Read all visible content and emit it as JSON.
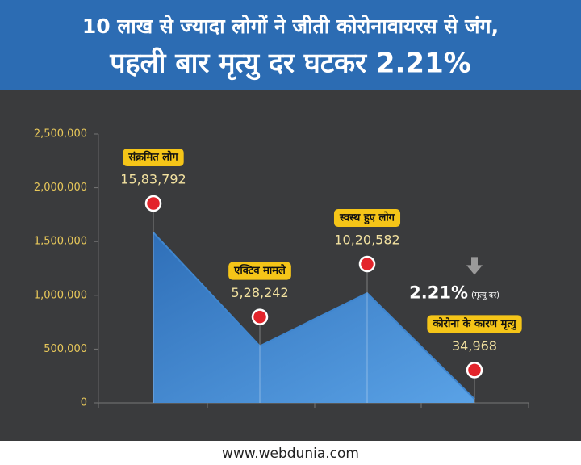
{
  "chart_data": {
    "type": "area",
    "title": "10 लाख से ज्यादा लोगों ने जीती कोरोनावायरस से जंग,",
    "subtitle": "पहली बार मृत्यु दर घटकर 2.21%",
    "categories": [
      "संक्रमित लोग",
      "एक्टिव मामले",
      "स्वस्थ हुए लोग",
      "कोरोना के कारण मृत्यु"
    ],
    "values": [
      1583792,
      528242,
      1020582,
      34968
    ],
    "value_labels": [
      "15,83,792",
      "5,28,242",
      "10,20,582",
      "34,968"
    ],
    "color": "#3f86cf",
    "ylim": [
      0,
      2500000
    ],
    "yticks": [
      0,
      {
        "value": 500000,
        "label": "500,000"
      },
      {
        "value": 1000000,
        "label": "1,000,000"
      },
      {
        "value": 1500000,
        "label": "1,500,000"
      },
      {
        "value": 2000000,
        "label": "2,000,000"
      },
      {
        "value": 2500000,
        "label": "2,500,000"
      }
    ],
    "annotation": "2.21%",
    "annotation_note": "(मृत्यु दर)",
    "footer": "www.webdunia.com"
  }
}
